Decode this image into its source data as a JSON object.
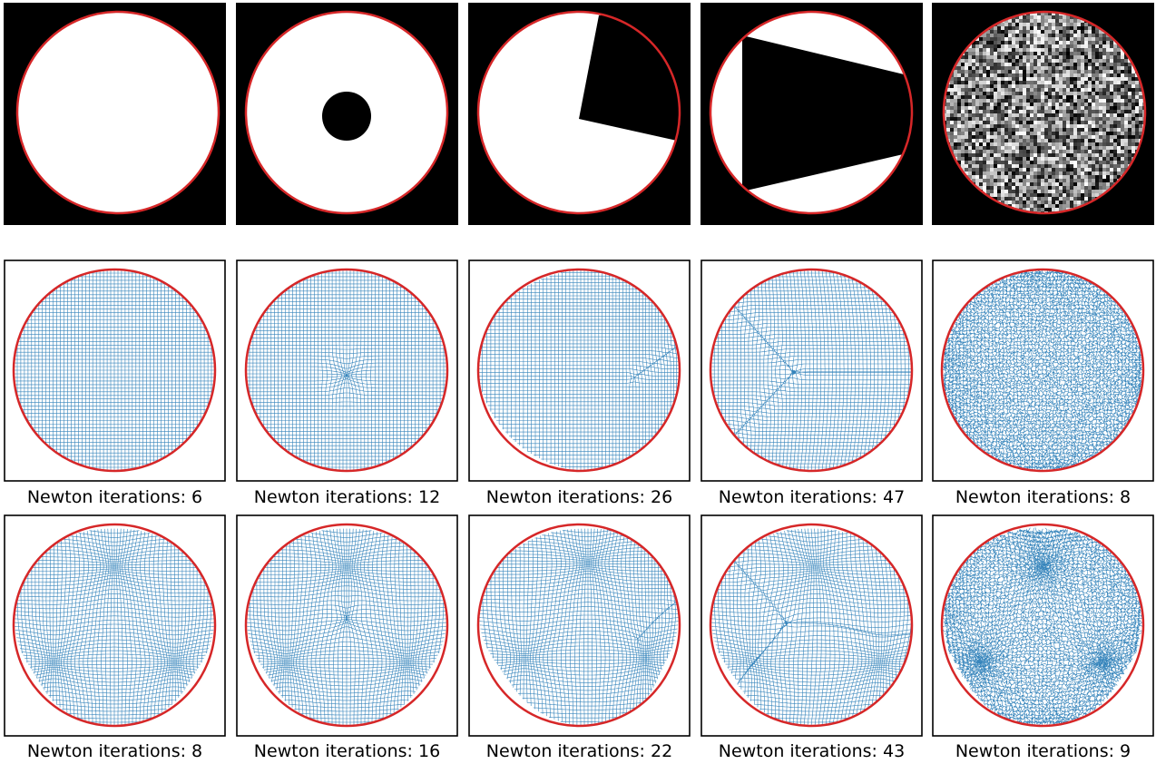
{
  "colors": {
    "boundary": "#d62728",
    "mesh": "#1f77b4",
    "image_bg": "#000000",
    "image_fg": "#ffffff"
  },
  "row1": [
    {
      "id": "disk"
    },
    {
      "id": "disk-with-hole"
    },
    {
      "id": "disk-with-square"
    },
    {
      "id": "disk-with-triangle"
    },
    {
      "id": "noise"
    }
  ],
  "row2": [
    {
      "caption": "Newton iterations: 6",
      "iterations": 6
    },
    {
      "caption": "Newton iterations: 12",
      "iterations": 12
    },
    {
      "caption": "Newton iterations: 26",
      "iterations": 26
    },
    {
      "caption": "Newton iterations: 47",
      "iterations": 47
    },
    {
      "caption": "Newton iterations: 8",
      "iterations": 8
    }
  ],
  "row3": [
    {
      "caption": "Newton iterations: 8",
      "iterations": 8
    },
    {
      "caption": "Newton iterations: 16",
      "iterations": 16
    },
    {
      "caption": "Newton iterations: 22",
      "iterations": 22
    },
    {
      "caption": "Newton iterations: 43",
      "iterations": 43
    },
    {
      "caption": "Newton iterations: 9",
      "iterations": 9
    }
  ]
}
